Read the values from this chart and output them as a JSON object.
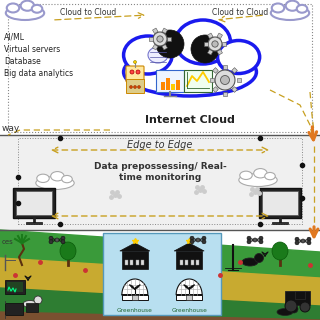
{
  "bg_color": "#ffffff",
  "cloud_layer": {
    "cloud_fill": "#ffffff",
    "cloud_edge": "#1a1aee",
    "cloud_label": "Internet Cloud",
    "cloud_label_color": "#222222",
    "left_text": [
      "AI/ML",
      "Virtual servers",
      "Database",
      "Big data analytics"
    ],
    "left_text_color": "#222222",
    "top_left_label": "Cloud to Cloud",
    "top_right_label": "Cloud to Cloud",
    "dashed_color": "#c8a020"
  },
  "edge_layer": {
    "bg_color": "#f5f5f5",
    "label1": "Edge to Edge",
    "label2": "Data prepossessing/ Real-\ntime monitoring",
    "dashed_color": "#c8a020",
    "dot_color": "#111111",
    "left_partial_text": "way"
  },
  "farm_layer": {
    "green_top_color": "#3a9a3a",
    "green_bot_color": "#2e7d32",
    "yellow_color": "#c8aa30",
    "brown_color": "#7a5030",
    "greenhouse_bg": "#b8dff0",
    "greenhouse_label": "Greenhouse",
    "greenhouse_label_color": "#226633"
  },
  "arrow_color": "#e07820",
  "separator_color": "#444444"
}
